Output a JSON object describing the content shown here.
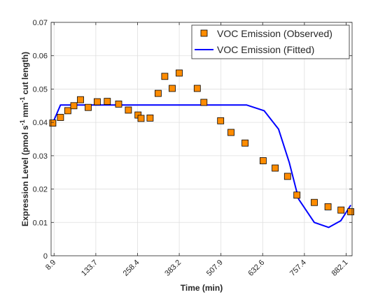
{
  "chart_data": {
    "type": "line",
    "title": "",
    "xlabel": "Time (min)",
    "ylabel": {
      "main": "Expression Level (pmol s",
      "sup1": "-1",
      "mid": " mm",
      "sup2": "-1",
      "end": " cut length)"
    },
    "xlim": [
      0,
      900
    ],
    "ylim": [
      0,
      0.07
    ],
    "xticks": [
      8.9,
      133.7,
      258.4,
      383.2,
      507.9,
      632.6,
      757.4,
      882.1
    ],
    "xtick_labels": [
      "8.9",
      "133.7",
      "258.4",
      "383.2",
      "507.9",
      "632.6",
      "757.4",
      "882.1"
    ],
    "yticks": [
      0,
      0.01,
      0.02,
      0.03,
      0.04,
      0.05,
      0.06,
      0.07
    ],
    "ytick_labels": [
      "0",
      "0.01",
      "0.02",
      "0.03",
      "0.04",
      "0.05",
      "0.06",
      "0.07"
    ],
    "grid": true,
    "legend_position": "top-right",
    "series": [
      {
        "name": "VOC Emission (Observed)",
        "style": "markers",
        "marker": "square",
        "color": "#FF8C00",
        "edge_color": "#000000",
        "points": [
          [
            5,
            0.0398
          ],
          [
            28,
            0.0415
          ],
          [
            50,
            0.0435
          ],
          [
            68,
            0.045
          ],
          [
            88,
            0.0468
          ],
          [
            111,
            0.0445
          ],
          [
            138,
            0.0462
          ],
          [
            168,
            0.0463
          ],
          [
            202,
            0.0455
          ],
          [
            231,
            0.0437
          ],
          [
            260,
            0.0422
          ],
          [
            269,
            0.0412
          ],
          [
            296,
            0.0413
          ],
          [
            320,
            0.0487
          ],
          [
            340,
            0.0538
          ],
          [
            362,
            0.0502
          ],
          [
            383,
            0.0548
          ],
          [
            437,
            0.0502
          ],
          [
            457,
            0.046
          ],
          [
            507,
            0.0405
          ],
          [
            538,
            0.037
          ],
          [
            580,
            0.0338
          ],
          [
            634,
            0.0285
          ],
          [
            670,
            0.0263
          ],
          [
            707,
            0.0238
          ],
          [
            735,
            0.0182
          ],
          [
            787,
            0.016
          ],
          [
            828,
            0.0147
          ],
          [
            867,
            0.0137
          ],
          [
            896,
            0.0132
          ]
        ]
      },
      {
        "name": "VOC Emission (Fitted)",
        "style": "line",
        "color": "#0000FF",
        "points": [
          [
            5,
            0.0398
          ],
          [
            28,
            0.0452
          ],
          [
            100,
            0.0452
          ],
          [
            200,
            0.0452
          ],
          [
            300,
            0.0452
          ],
          [
            400,
            0.0452
          ],
          [
            500,
            0.0452
          ],
          [
            585,
            0.0452
          ],
          [
            637,
            0.0435
          ],
          [
            680,
            0.038
          ],
          [
            712,
            0.028
          ],
          [
            740,
            0.017
          ],
          [
            787,
            0.01
          ],
          [
            830,
            0.0085
          ],
          [
            866,
            0.0105
          ],
          [
            896,
            0.0152
          ]
        ]
      }
    ]
  }
}
